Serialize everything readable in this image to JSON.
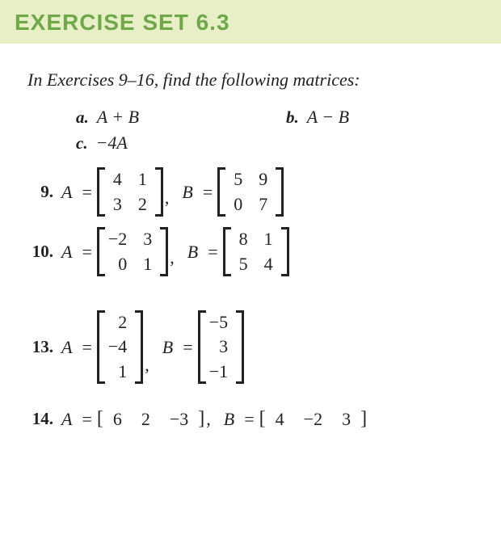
{
  "colors": {
    "header_bg": "#e8efc7",
    "header_text": "#6fa849",
    "body_text": "#222222",
    "page_bg": "#ffffff"
  },
  "header": {
    "title": "EXERCISE SET 6.3"
  },
  "instruction": "In Exercises 9–16, find the following matrices:",
  "parts": {
    "a": {
      "label": "a.",
      "expr": "A + B"
    },
    "b": {
      "label": "b.",
      "expr": "A − B"
    },
    "c": {
      "label": "c.",
      "expr": "−4A"
    }
  },
  "problems": {
    "p9": {
      "num": "9.",
      "A": {
        "type": "matrix",
        "rows": 2,
        "cols": 2,
        "values": [
          [
            "4",
            "1"
          ],
          [
            "3",
            "2"
          ]
        ]
      },
      "B": {
        "type": "matrix",
        "rows": 2,
        "cols": 2,
        "values": [
          [
            "5",
            "9"
          ],
          [
            "0",
            "7"
          ]
        ]
      }
    },
    "p10": {
      "num": "10.",
      "A": {
        "type": "matrix",
        "rows": 2,
        "cols": 2,
        "values": [
          [
            "−2",
            "3"
          ],
          [
            "0",
            "1"
          ]
        ]
      },
      "B": {
        "type": "matrix",
        "rows": 2,
        "cols": 2,
        "values": [
          [
            "8",
            "1"
          ],
          [
            "5",
            "4"
          ]
        ]
      }
    },
    "p13": {
      "num": "13.",
      "A": {
        "type": "matrix",
        "rows": 3,
        "cols": 1,
        "values": [
          [
            "2"
          ],
          [
            "−4"
          ],
          [
            "1"
          ]
        ]
      },
      "B": {
        "type": "matrix",
        "rows": 3,
        "cols": 1,
        "values": [
          [
            "−5"
          ],
          [
            "3"
          ],
          [
            "−1"
          ]
        ]
      }
    },
    "p14": {
      "num": "14.",
      "A": {
        "type": "rowvector",
        "values": [
          "6",
          "2",
          "−3"
        ]
      },
      "B": {
        "type": "rowvector",
        "values": [
          "4",
          "−2",
          "3"
        ]
      }
    }
  },
  "symbols": {
    "Avar": "A",
    "Bvar": "B",
    "eq": "="
  }
}
